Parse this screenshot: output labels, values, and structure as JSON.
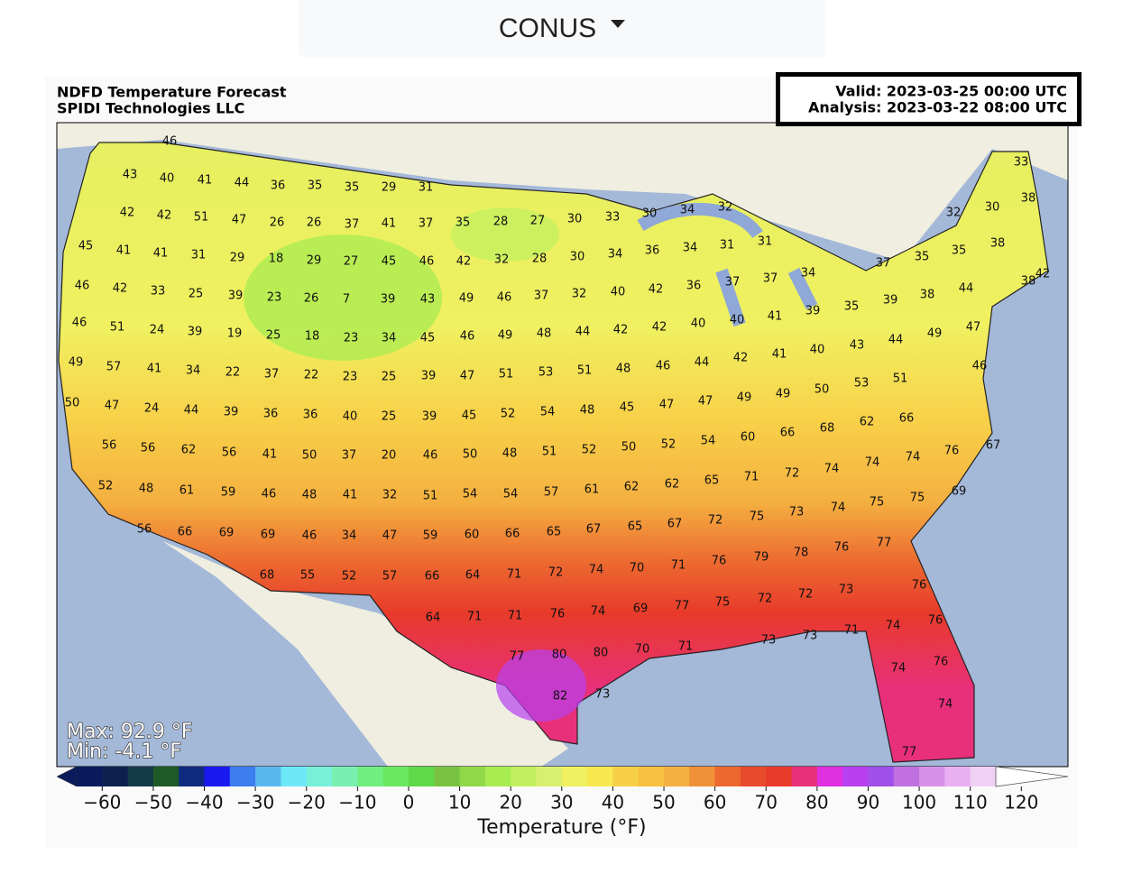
{
  "dropdown": "CONUS",
  "map": {
    "title": "NDFD Temperature Forecast",
    "credit": "SPIDI Technologies LLC",
    "valid": "Valid: 2023-03-25 00:00 UTC",
    "analysis": "Analysis: 2023-03-22 08:00 UTC",
    "max": "Max: 92.9 °F",
    "min": "Min: -4.1 °F",
    "labels": [
      46,
      33,
      43,
      40,
      41,
      44,
      36,
      35,
      35,
      29,
      31,
      38,
      30,
      32,
      34,
      32,
      42,
      42,
      51,
      47,
      26,
      26,
      37,
      41,
      37,
      35,
      28,
      27,
      30,
      33,
      30,
      45,
      41,
      41,
      31,
      29,
      18,
      29,
      27,
      45,
      46,
      42,
      32,
      28,
      30,
      34,
      36,
      34,
      31,
      31,
      34,
      37,
      35,
      35,
      38,
      38,
      42,
      46,
      42,
      33,
      25,
      39,
      23,
      26,
      7,
      39,
      43,
      49,
      46,
      37,
      32,
      40,
      42,
      36,
      37,
      37,
      44,
      39,
      38,
      35,
      39,
      41,
      40,
      46,
      51,
      24,
      39,
      19,
      25,
      18,
      23,
      34,
      45,
      46,
      49,
      48,
      44,
      42,
      42,
      40,
      49,
      57,
      41,
      34,
      22,
      37,
      22,
      23,
      25,
      39,
      47,
      51,
      53,
      51,
      48,
      46,
      44,
      42,
      41,
      40,
      43,
      44,
      49,
      47,
      46,
      50,
      47,
      24,
      44,
      39,
      36,
      36,
      40,
      25,
      39,
      45,
      52,
      54,
      48,
      45,
      47,
      47,
      49,
      49,
      50,
      53,
      51,
      56,
      56,
      62,
      56,
      41,
      50,
      37,
      20,
      46,
      50,
      48,
      51,
      52,
      50,
      52,
      54,
      60,
      66,
      68,
      62,
      66,
      76,
      67,
      52,
      48,
      61,
      59,
      46,
      48,
      41,
      32,
      51,
      54,
      54,
      57,
      61,
      62,
      62,
      65,
      71,
      72,
      74,
      74,
      74,
      75,
      75,
      69,
      74,
      73,
      75,
      72,
      56,
      66,
      69,
      69,
      46,
      34,
      47,
      59,
      60,
      66,
      65,
      67,
      65,
      67,
      77,
      76,
      78,
      79,
      76,
      71,
      70,
      74,
      72,
      71,
      64,
      66,
      57,
      52,
      55,
      68,
      73,
      72,
      72,
      75,
      77,
      69,
      74,
      76,
      71,
      71,
      64,
      76,
      71,
      73,
      73,
      71,
      70,
      80,
      80,
      77,
      74,
      76,
      74,
      76,
      82,
      73,
      74,
      77
    ]
  },
  "colorbar": {
    "label": "Temperature (°F)",
    "xlim": [
      -65,
      115
    ],
    "xticks": [
      {
        "value": -60,
        "label": "−60"
      },
      {
        "value": -50,
        "label": "−50"
      },
      {
        "value": -40,
        "label": "−40"
      },
      {
        "value": -30,
        "label": "−30"
      },
      {
        "value": -20,
        "label": "−20"
      },
      {
        "value": -10,
        "label": "−10"
      },
      0,
      10,
      20,
      30,
      40,
      50,
      60,
      70,
      80,
      90,
      100,
      110,
      120
    ],
    "colors": [
      "#0a1a5a",
      "#0e2050",
      "#143a4a",
      "#1e5a28",
      "#102a80",
      "#1a1af0",
      "#3c7df0",
      "#5ab8f0",
      "#6ee8f8",
      "#78f0d8",
      "#7af0b0",
      "#70ee80",
      "#68e860",
      "#60d848",
      "#78c440",
      "#90d848",
      "#a8ec50",
      "#c0f060",
      "#d8f070",
      "#f0f060",
      "#f8e850",
      "#f8d048",
      "#f8c040",
      "#f4b040",
      "#f09038",
      "#ec6830",
      "#e84a2c",
      "#e83a2a",
      "#e8307a",
      "#e030e0",
      "#b840f0",
      "#a050e8",
      "#c070e0",
      "#d890e8",
      "#e8b0f0",
      "#f0d0f4"
    ],
    "under": "#0a1a5a",
    "over": "#ffffff"
  }
}
